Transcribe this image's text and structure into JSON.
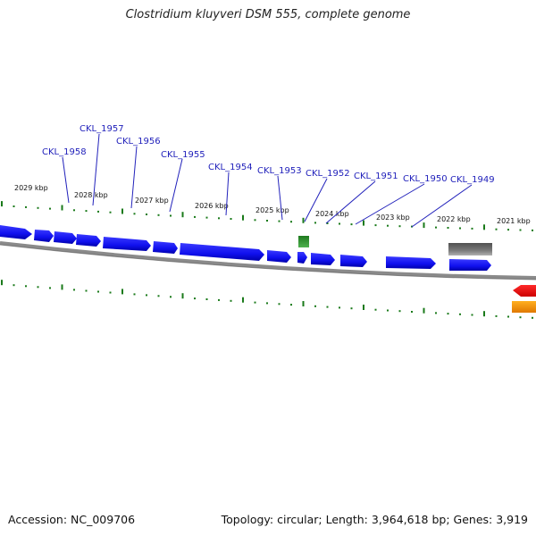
{
  "title": "Clostridium kluyveri DSM 555, complete genome",
  "footer": {
    "accession": "Accession: NC_009706",
    "summary": "Topology: circular; Length: 3,964,618 bp; Genes: 3,919"
  },
  "colors": {
    "cds": "#1a1aff",
    "backbone": "#8a8a8a",
    "ticks": "#1a7a1a",
    "label": "#2222bb",
    "trna": "#2e8b2e",
    "rrna": "#6e6e6e",
    "red_feature": "#ff0000",
    "orange_feature": "#ff9900"
  },
  "scale_labels": [
    "2029 kbp",
    "2028 kbp",
    "2027 kbp",
    "2026 kbp",
    "2025 kbp",
    "2024 kbp",
    "2023 kbp",
    "2022 kbp",
    "2021 kbp"
  ],
  "gene_labels": [
    "CKL_1958",
    "CKL_1957",
    "CKL_1956",
    "CKL_1955",
    "CKL_1954",
    "CKL_1953",
    "CKL_1952",
    "CKL_1951",
    "CKL_1950",
    "CKL_1949"
  ]
}
